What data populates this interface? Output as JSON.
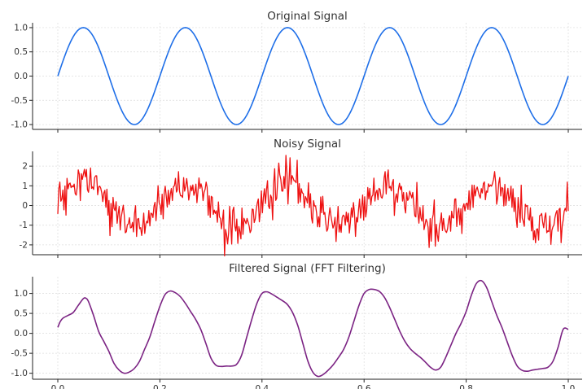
{
  "chart_data": [
    {
      "type": "line",
      "title": "Original Signal",
      "xlim": [
        0.0,
        1.0
      ],
      "ylim": [
        -1.1,
        1.1
      ],
      "yticks": [
        1.0,
        0.5,
        0.0,
        -0.5,
        -1.0
      ],
      "ytick_labels": [
        "1.0",
        "0.5",
        "0.0",
        "-0.5",
        "-1.0"
      ],
      "xticks": [
        0.0,
        0.2,
        0.4,
        0.6,
        0.8,
        1.0
      ],
      "xtick_labels": [],
      "grid": true,
      "series": [
        {
          "color": "#1f6fe8",
          "signal": {
            "kind": "sine",
            "frequency_hz": 5,
            "amplitude": 1.0
          }
        }
      ]
    },
    {
      "type": "line",
      "title": "Noisy Signal",
      "xlim": [
        0.0,
        1.0
      ],
      "ylim": [
        -2.5,
        2.75
      ],
      "yticks": [
        2,
        1,
        0,
        -1,
        -2
      ],
      "ytick_labels": [
        "2",
        "1",
        "0",
        "-1",
        "-2"
      ],
      "xticks": [
        0.0,
        0.2,
        0.4,
        0.6,
        0.8,
        1.0
      ],
      "xtick_labels": [],
      "grid": true,
      "series": [
        {
          "color": "#ee1111",
          "signal": {
            "kind": "sine_plus_noise",
            "frequency_hz": 5,
            "amplitude": 1.0,
            "noise_std": 0.5,
            "samples": 500
          }
        }
      ]
    },
    {
      "type": "line",
      "title": "Filtered Signal (FFT Filtering)",
      "xlim": [
        0.0,
        1.0
      ],
      "ylim": [
        -1.15,
        1.42
      ],
      "yticks": [
        1.0,
        0.5,
        0.0,
        -0.5,
        -1.0
      ],
      "ytick_labels": [
        "1.0",
        "0.5",
        "0.0",
        "-0.5",
        "-1.0"
      ],
      "xticks": [
        0.0,
        0.2,
        0.4,
        0.6,
        0.8,
        1.0
      ],
      "xtick_labels": [
        "0.0",
        "0.2",
        "0.4",
        "0.6",
        "0.8",
        "1.0"
      ],
      "grid": true,
      "series": [
        {
          "color": "#7b2383",
          "x": [
            0.0,
            0.005,
            0.01,
            0.02,
            0.03,
            0.04,
            0.05,
            0.055,
            0.06,
            0.07,
            0.08,
            0.09,
            0.1,
            0.11,
            0.12,
            0.13,
            0.14,
            0.15,
            0.16,
            0.17,
            0.18,
            0.19,
            0.2,
            0.21,
            0.22,
            0.23,
            0.24,
            0.25,
            0.26,
            0.27,
            0.28,
            0.29,
            0.3,
            0.31,
            0.32,
            0.33,
            0.34,
            0.35,
            0.36,
            0.37,
            0.38,
            0.39,
            0.4,
            0.41,
            0.42,
            0.43,
            0.44,
            0.45,
            0.46,
            0.47,
            0.48,
            0.49,
            0.5,
            0.51,
            0.52,
            0.53,
            0.54,
            0.55,
            0.56,
            0.57,
            0.58,
            0.59,
            0.6,
            0.61,
            0.62,
            0.63,
            0.64,
            0.65,
            0.66,
            0.67,
            0.68,
            0.69,
            0.7,
            0.71,
            0.72,
            0.73,
            0.74,
            0.75,
            0.76,
            0.77,
            0.78,
            0.79,
            0.8,
            0.81,
            0.82,
            0.83,
            0.84,
            0.85,
            0.86,
            0.87,
            0.88,
            0.89,
            0.9,
            0.91,
            0.92,
            0.93,
            0.94,
            0.95,
            0.96,
            0.97,
            0.98,
            0.99,
            1.0
          ],
          "y": [
            0.15,
            0.3,
            0.38,
            0.45,
            0.52,
            0.7,
            0.87,
            0.88,
            0.8,
            0.45,
            0.05,
            -0.2,
            -0.45,
            -0.75,
            -0.92,
            -1.0,
            -0.97,
            -0.88,
            -0.7,
            -0.4,
            -0.1,
            0.3,
            0.68,
            0.97,
            1.06,
            1.02,
            0.92,
            0.75,
            0.55,
            0.35,
            0.1,
            -0.25,
            -0.62,
            -0.8,
            -0.83,
            -0.82,
            -0.82,
            -0.78,
            -0.55,
            -0.1,
            0.35,
            0.75,
            1.0,
            1.04,
            0.98,
            0.9,
            0.82,
            0.72,
            0.52,
            0.2,
            -0.25,
            -0.7,
            -0.98,
            -1.08,
            -1.03,
            -0.92,
            -0.78,
            -0.6,
            -0.4,
            -0.1,
            0.3,
            0.7,
            1.0,
            1.1,
            1.1,
            1.05,
            0.9,
            0.65,
            0.35,
            0.05,
            -0.2,
            -0.38,
            -0.5,
            -0.6,
            -0.72,
            -0.85,
            -0.92,
            -0.85,
            -0.6,
            -0.3,
            0.0,
            0.25,
            0.55,
            0.95,
            1.25,
            1.32,
            1.15,
            0.8,
            0.45,
            0.15,
            -0.2,
            -0.55,
            -0.82,
            -0.93,
            -0.95,
            -0.92,
            -0.9,
            -0.88,
            -0.85,
            -0.7,
            -0.35,
            0.1,
            0.1
          ]
        }
      ]
    }
  ]
}
